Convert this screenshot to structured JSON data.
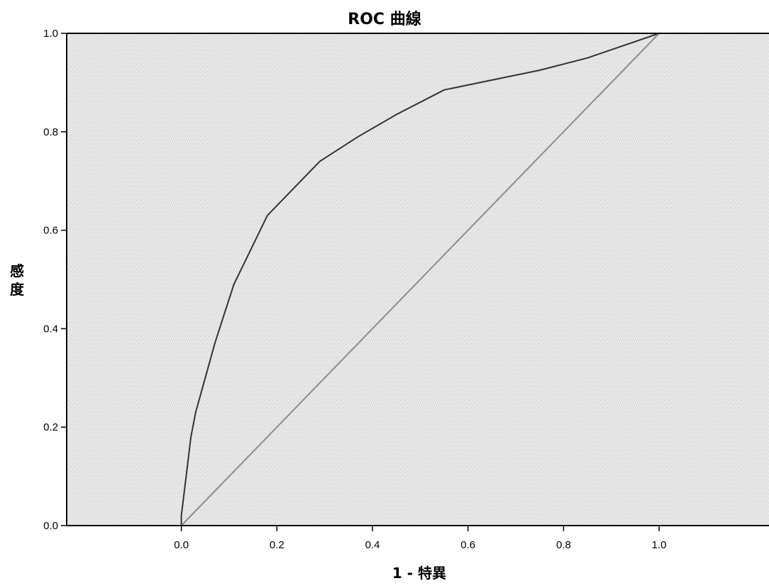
{
  "chart_data": {
    "type": "line",
    "title": "ROC 曲線",
    "xlabel": "1 - 特異",
    "ylabel": "感度",
    "xlim": [
      -0.24,
      1.23
    ],
    "ylim": [
      0,
      1
    ],
    "x_ticks": [
      "0.0",
      "0.2",
      "0.4",
      "0.6",
      "0.8",
      "1.0"
    ],
    "y_ticks": [
      "0.0",
      "0.2",
      "0.4",
      "0.6",
      "0.8",
      "1.0"
    ],
    "grid": false,
    "background_color": "#e9e9e9",
    "series": [
      {
        "color": "#333333",
        "x": [
          0.0,
          0.0,
          0.01,
          0.02,
          0.03,
          0.05,
          0.07,
          0.09,
          0.11,
          0.14,
          0.18,
          0.23,
          0.29,
          0.37,
          0.45,
          0.55,
          0.65,
          0.75,
          0.85,
          1.0
        ],
        "y": [
          0.0,
          0.02,
          0.1,
          0.18,
          0.23,
          0.3,
          0.37,
          0.43,
          0.49,
          0.55,
          0.63,
          0.68,
          0.74,
          0.79,
          0.835,
          0.885,
          0.905,
          0.925,
          0.95,
          1.0
        ]
      },
      {
        "color": "#8c8c8c",
        "x": [
          0.0,
          1.0
        ],
        "y": [
          0.0,
          1.0
        ]
      }
    ]
  }
}
